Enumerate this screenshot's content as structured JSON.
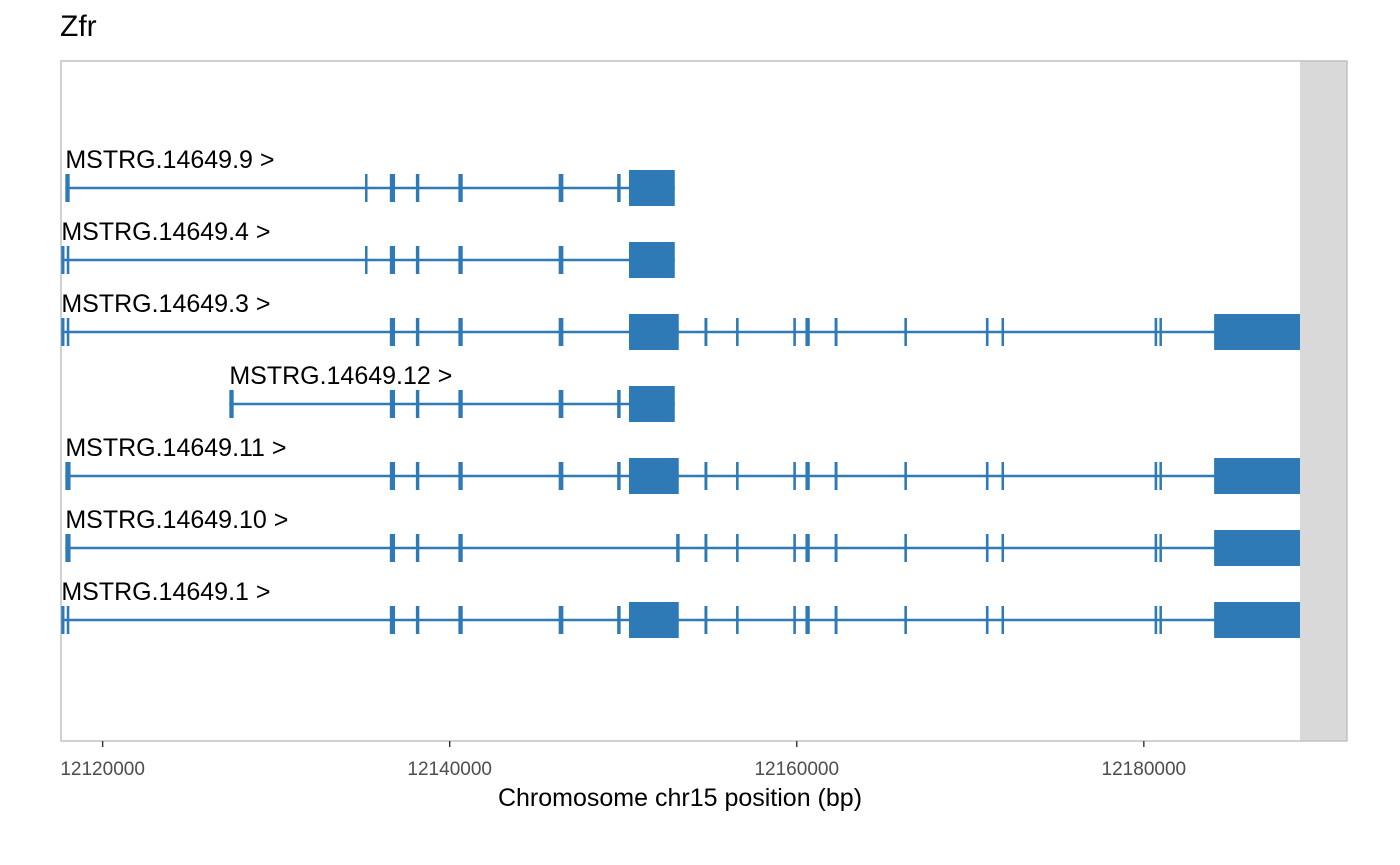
{
  "chart_data": {
    "type": "gene-structure",
    "title": "Zfr",
    "xlabel": "Chromosome chr15 position (bp)",
    "chromosome": "chr15",
    "xlim": [
      12117600,
      12189000
    ],
    "xticks": [
      12120000,
      12140000,
      12160000,
      12180000
    ],
    "xtick_labels": [
      "12120000",
      "12140000",
      "12160000",
      "12180000"
    ],
    "color": "#2e7ab6",
    "strand_marker": ">",
    "transcripts": [
      {
        "name": "MSTRG.14649.9",
        "label": "MSTRG.14649.9 >",
        "exons": [
          [
            12117850,
            12118100
          ],
          [
            12135120,
            12135200
          ],
          [
            12136550,
            12136850
          ],
          [
            12138050,
            12138250
          ],
          [
            12140500,
            12140750
          ],
          [
            12146280,
            12146550
          ],
          [
            12149650,
            12149850
          ],
          [
            12150330,
            12152970
          ]
        ]
      },
      {
        "name": "MSTRG.14649.4",
        "label": "MSTRG.14649.4 >",
        "exons": [
          [
            12117620,
            12117800
          ],
          [
            12117930,
            12118080
          ],
          [
            12135120,
            12135200
          ],
          [
            12136550,
            12136850
          ],
          [
            12138050,
            12138250
          ],
          [
            12140500,
            12140750
          ],
          [
            12146280,
            12146550
          ],
          [
            12150330,
            12152970
          ]
        ]
      },
      {
        "name": "MSTRG.14649.3",
        "label": "MSTRG.14649.3 >",
        "exons": [
          [
            12117620,
            12117800
          ],
          [
            12117930,
            12118080
          ],
          [
            12136550,
            12136850
          ],
          [
            12138050,
            12138250
          ],
          [
            12140500,
            12140750
          ],
          [
            12146280,
            12146550
          ],
          [
            12150330,
            12153200
          ],
          [
            12154680,
            12154850
          ],
          [
            12156500,
            12156650
          ],
          [
            12159800,
            12159950
          ],
          [
            12160500,
            12160750
          ],
          [
            12162180,
            12162350
          ],
          [
            12166200,
            12166350
          ],
          [
            12170900,
            12171050
          ],
          [
            12171800,
            12171900
          ],
          [
            12180620,
            12180770
          ],
          [
            12180900,
            12181000
          ],
          [
            12184050,
            12189000
          ]
        ]
      },
      {
        "name": "MSTRG.14649.12",
        "label": "MSTRG.14649.12 >",
        "exons": [
          [
            12127300,
            12127550
          ],
          [
            12136550,
            12136850
          ],
          [
            12138050,
            12138250
          ],
          [
            12140500,
            12140750
          ],
          [
            12146280,
            12146550
          ],
          [
            12149650,
            12149850
          ],
          [
            12150330,
            12152970
          ]
        ]
      },
      {
        "name": "MSTRG.14649.11",
        "label": "MSTRG.14649.11 >",
        "exons": [
          [
            12117850,
            12118150
          ],
          [
            12136550,
            12136850
          ],
          [
            12138050,
            12138250
          ],
          [
            12140500,
            12140750
          ],
          [
            12146280,
            12146550
          ],
          [
            12149650,
            12149850
          ],
          [
            12150330,
            12153200
          ],
          [
            12154680,
            12154850
          ],
          [
            12156500,
            12156650
          ],
          [
            12159800,
            12159950
          ],
          [
            12160500,
            12160750
          ],
          [
            12162180,
            12162350
          ],
          [
            12166200,
            12166350
          ],
          [
            12170900,
            12171050
          ],
          [
            12171800,
            12171900
          ],
          [
            12180620,
            12180770
          ],
          [
            12180900,
            12181000
          ],
          [
            12184050,
            12189000
          ]
        ]
      },
      {
        "name": "MSTRG.14649.10",
        "label": "MSTRG.14649.10 >",
        "exons": [
          [
            12117850,
            12118150
          ],
          [
            12136550,
            12136850
          ],
          [
            12138050,
            12138250
          ],
          [
            12140500,
            12140750
          ],
          [
            12153050,
            12153250
          ],
          [
            12154680,
            12154850
          ],
          [
            12156500,
            12156650
          ],
          [
            12159800,
            12159950
          ],
          [
            12160500,
            12160750
          ],
          [
            12162180,
            12162350
          ],
          [
            12166200,
            12166350
          ],
          [
            12170900,
            12171050
          ],
          [
            12171800,
            12171900
          ],
          [
            12180620,
            12180770
          ],
          [
            12180900,
            12181000
          ],
          [
            12184050,
            12189000
          ]
        ]
      },
      {
        "name": "MSTRG.14649.1",
        "label": "MSTRG.14649.1 >",
        "exons": [
          [
            12117620,
            12117800
          ],
          [
            12117930,
            12118080
          ],
          [
            12136550,
            12136850
          ],
          [
            12138050,
            12138250
          ],
          [
            12140500,
            12140750
          ],
          [
            12146280,
            12146550
          ],
          [
            12149650,
            12149850
          ],
          [
            12150330,
            12153200
          ],
          [
            12154680,
            12154850
          ],
          [
            12156500,
            12156650
          ],
          [
            12159800,
            12159950
          ],
          [
            12160500,
            12160750
          ],
          [
            12162180,
            12162350
          ],
          [
            12166200,
            12166350
          ],
          [
            12170900,
            12171050
          ],
          [
            12171800,
            12171900
          ],
          [
            12180620,
            12180770
          ],
          [
            12180900,
            12181000
          ],
          [
            12184050,
            12189000
          ]
        ]
      }
    ]
  }
}
